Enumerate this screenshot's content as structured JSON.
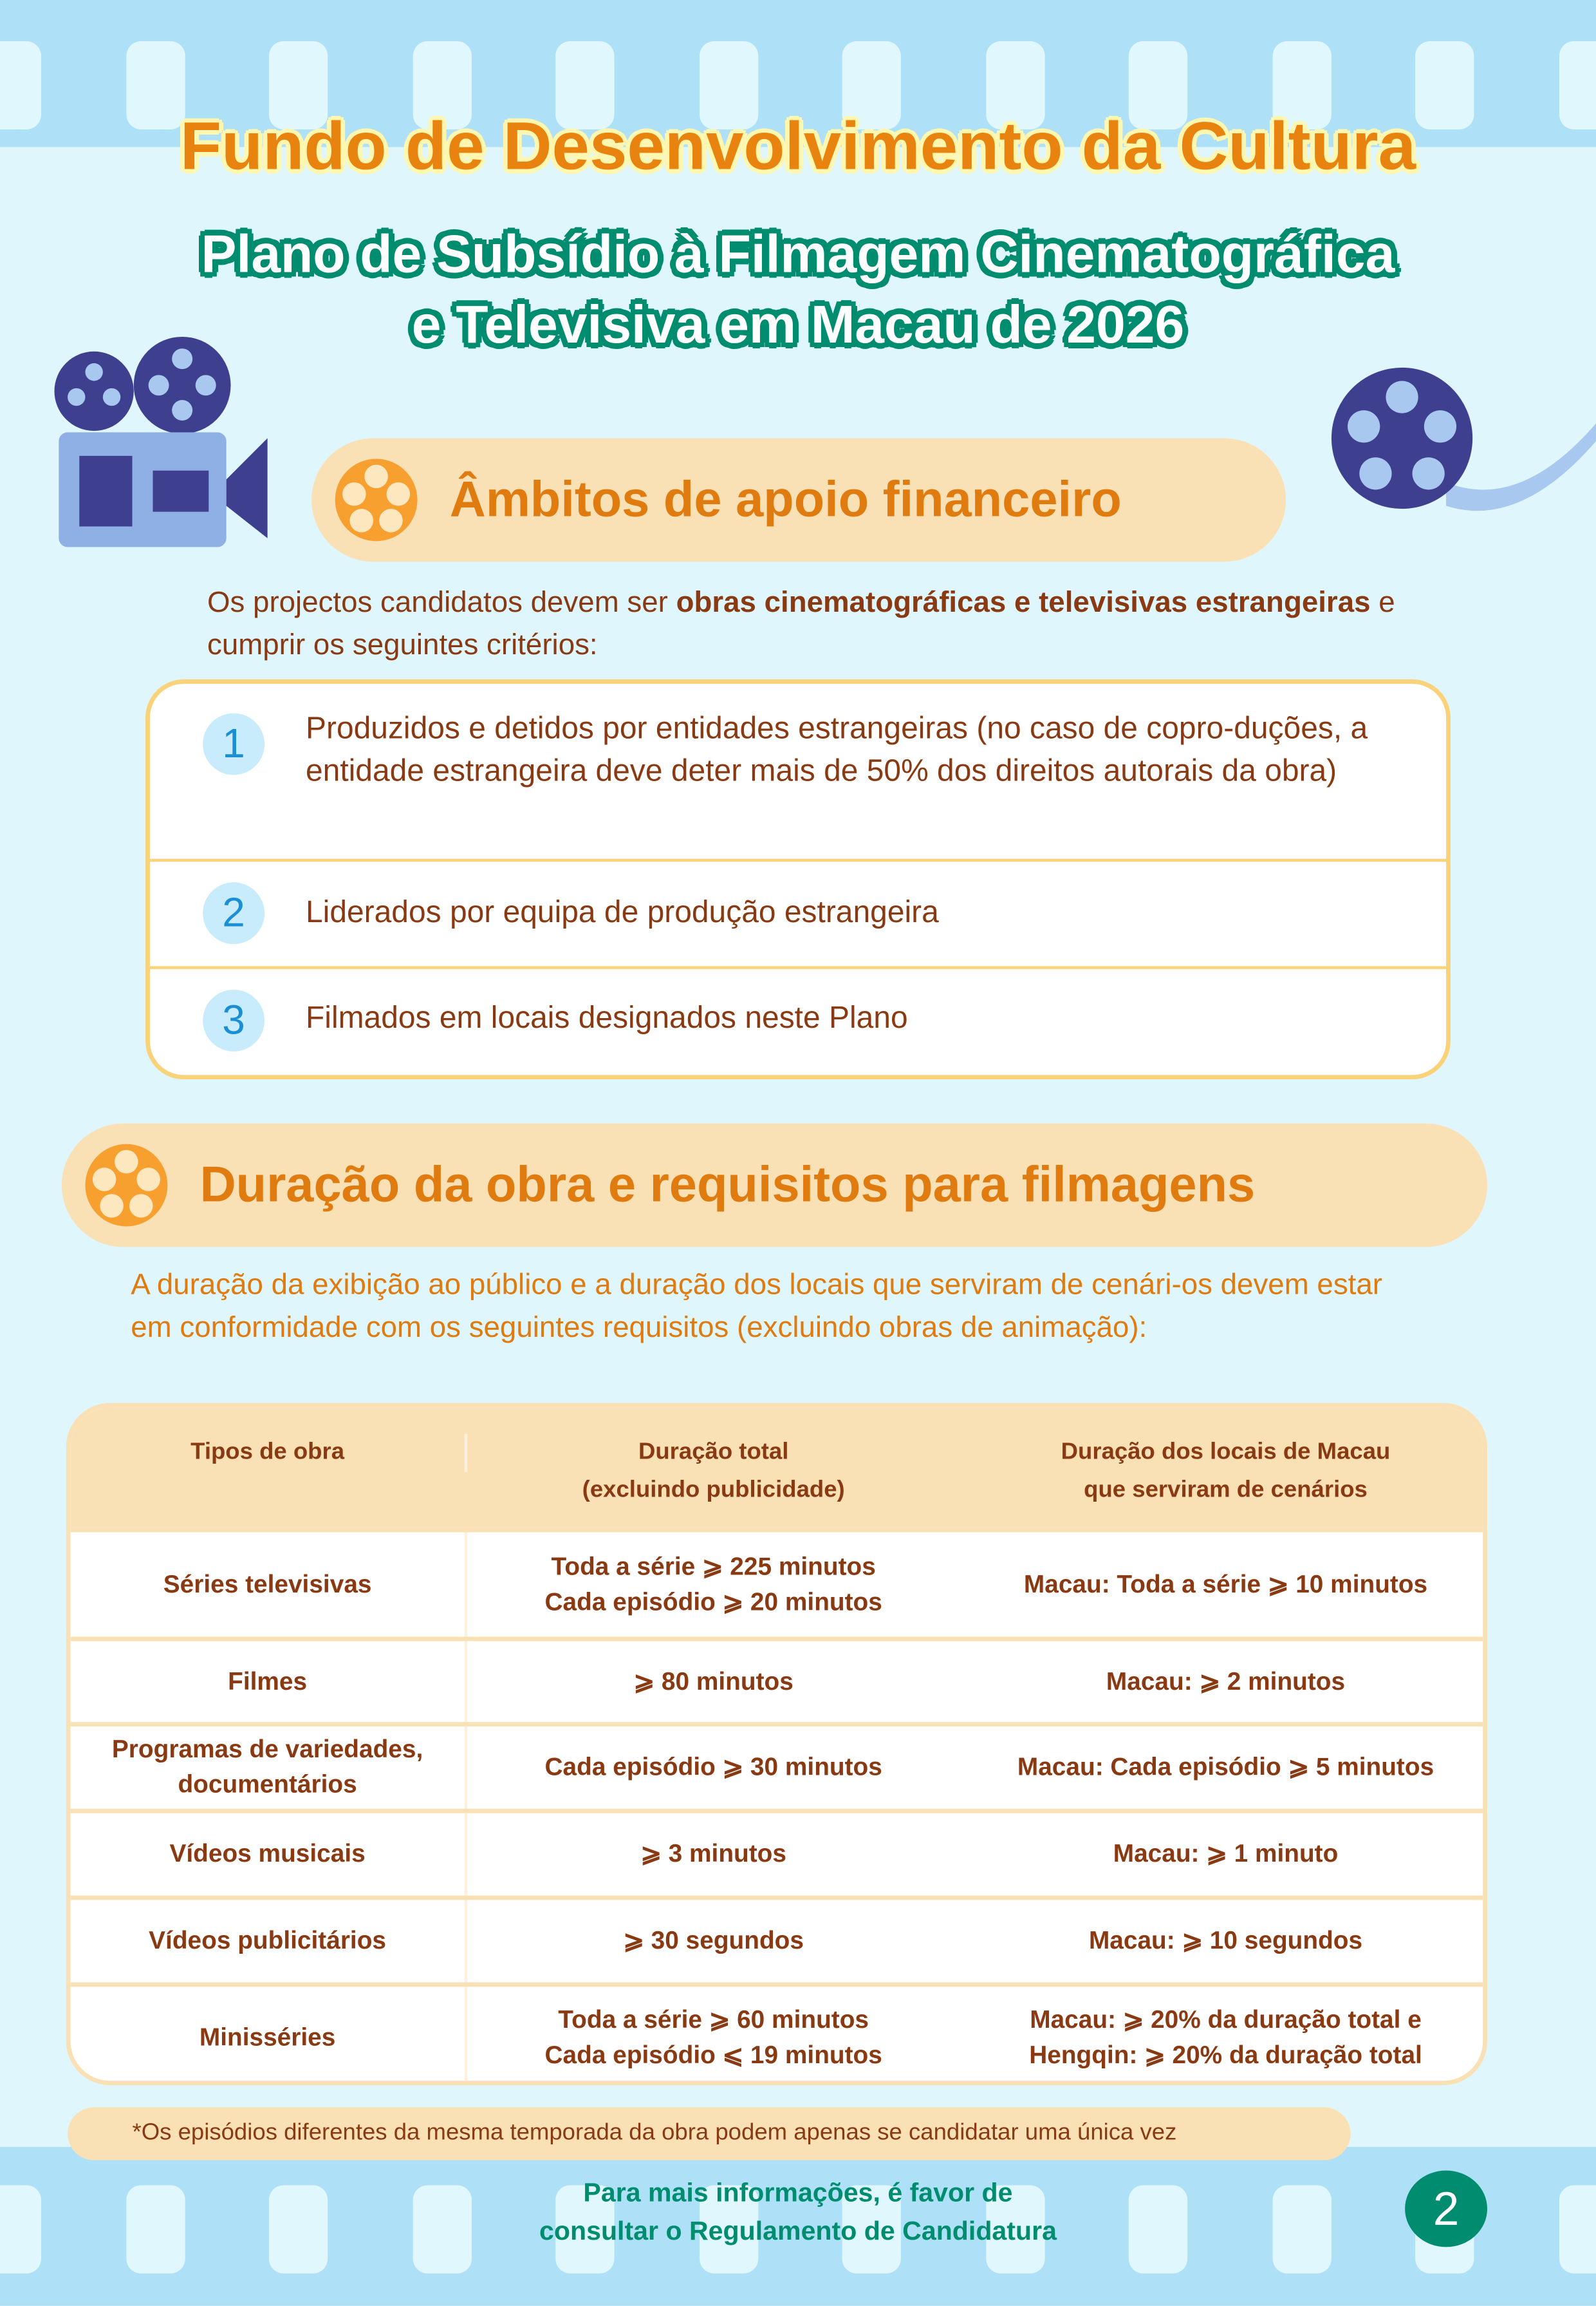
{
  "title": "Fundo de Desenvolvimento da Cultura",
  "subtitle_lines": [
    "Plano de Subsídio à Filmagem Cinematográfica",
    "e Televisiva em Macau de 2026"
  ],
  "section1": {
    "heading": "Âmbitos de apoio financeiro",
    "intro_pre": "Os projectos candidatos devem ser ",
    "intro_bold": "obras cinematográficas e televisivas estrangeiras",
    "intro_post": " e cumprir os seguintes critérios:",
    "criteria": [
      {
        "num": "1",
        "text": "Produzidos e detidos por entidades estrangeiras (no caso de copro-duções, a entidade estrangeira deve deter mais de 50% dos direitos autorais da obra)"
      },
      {
        "num": "2",
        "text": "Liderados por equipa de produção estrangeira"
      },
      {
        "num": "3",
        "text": "Filmados em locais designados neste Plano"
      }
    ]
  },
  "section2": {
    "heading": "Duração da obra e requisitos para filmagens",
    "intro": "A duração da exibição ao público e a duração dos locais que serviram de cenári-os devem estar em conformidade com os seguintes requisitos (excluindo obras de animação):",
    "table": {
      "headers": [
        [
          "Tipos de obra"
        ],
        [
          "Duração total",
          "(excluindo publicidade)"
        ],
        [
          "Duração dos locais de Macau",
          "que serviram de cenários"
        ]
      ],
      "rows": [
        [
          [
            "Séries televisivas"
          ],
          [
            "Toda a série ⩾ 225 minutos",
            "Cada episódio ⩾ 20 minutos"
          ],
          [
            "Macau: Toda a série ⩾ 10 minutos"
          ]
        ],
        [
          [
            "Filmes"
          ],
          [
            "⩾ 80 minutos"
          ],
          [
            "Macau: ⩾ 2 minutos"
          ]
        ],
        [
          [
            "Programas de variedades,",
            "documentários"
          ],
          [
            "Cada episódio ⩾  30 minutos"
          ],
          [
            "Macau: Cada episódio ⩾ 5 minutos"
          ]
        ],
        [
          [
            "Vídeos musicais"
          ],
          [
            "⩾ 3 minutos"
          ],
          [
            "Macau:  ⩾ 1 minuto"
          ]
        ],
        [
          [
            "Vídeos publicitários"
          ],
          [
            "⩾ 30 segundos"
          ],
          [
            "Macau:  ⩾ 10 segundos"
          ]
        ],
        [
          [
            "Minisséries"
          ],
          [
            "Toda a série ⩾ 60 minutos",
            "Cada episódio ⩽ 19 minutos"
          ],
          [
            "Macau:  ⩾  20% da duração total e",
            "Hengqin:  ⩾  20% da duração total"
          ]
        ]
      ]
    },
    "note": "*Os episódios diferentes da mesma temporada da obra podem apenas se candidatar uma única vez"
  },
  "footer": {
    "lines": [
      "Para mais informações, é favor de",
      "consultar o Regulamento de Candidatura"
    ],
    "page": "2"
  },
  "colors": {
    "title": "#e8830f",
    "subtitle_outline": "#008c6e",
    "heading": "#e07b10",
    "text": "#8a3a12",
    "pill": "#fae1b5",
    "band": "#aee0f8"
  }
}
